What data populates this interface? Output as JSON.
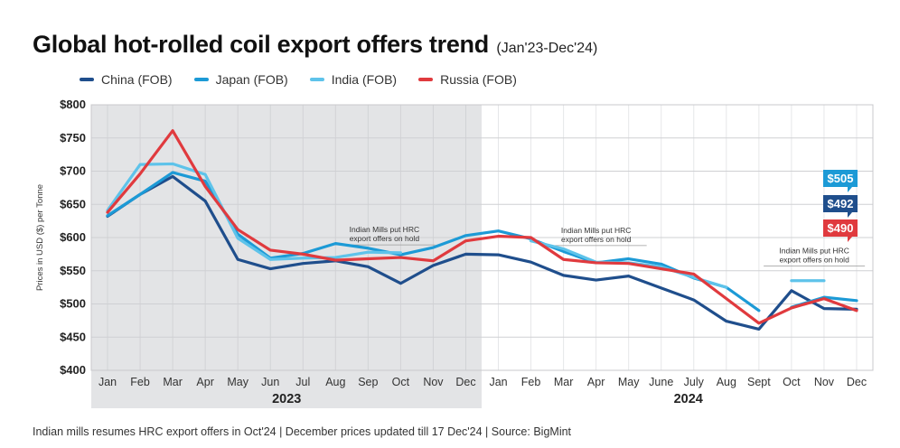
{
  "header": {
    "title": "Global hot-rolled coil export offers trend",
    "subtitle": "(Jan'23-Dec'24)"
  },
  "footer": {
    "note": "Indian mills resumes HRC export offers in Oct'24  |  December prices updated till 17 Dec'24 |  Source: BigMint"
  },
  "chart_data": {
    "type": "line",
    "title": "Global hot-rolled coil export offers trend",
    "subtitle": "(Jan'23-Dec'24)",
    "ylabel": "Prices in USD ($) per Tonne",
    "ylim": [
      400,
      800
    ],
    "yticks": [
      400,
      450,
      500,
      550,
      600,
      650,
      700,
      750,
      800
    ],
    "ytick_labels": [
      "$400",
      "$450",
      "$500",
      "$550",
      "$600",
      "$650",
      "$700",
      "$750",
      "$800"
    ],
    "grid": true,
    "legend_position": "top-left",
    "categories": [
      "Jan",
      "Feb",
      "Mar",
      "Apr",
      "May",
      "Jun",
      "Jul",
      "Aug",
      "Sep",
      "Oct",
      "Nov",
      "Dec",
      "Jan",
      "Feb",
      "Mar",
      "Apr",
      "May",
      "June",
      "July",
      "Aug",
      "Sept",
      "Oct",
      "Nov",
      "Dec"
    ],
    "year_groups": [
      {
        "label": "2023",
        "start": 0,
        "end": 11,
        "shaded": true
      },
      {
        "label": "2024",
        "start": 12,
        "end": 23,
        "shaded": false
      }
    ],
    "series": [
      {
        "name": "China (FOB)",
        "color": "#1f4e8c",
        "values": [
          632,
          665,
          692,
          655,
          567,
          553,
          561,
          565,
          556,
          531,
          558,
          575,
          574,
          563,
          543,
          536,
          542,
          524,
          506,
          474,
          462,
          520,
          493,
          492
        ]
      },
      {
        "name": "Japan (FOB)",
        "color": "#1c9ad6",
        "values": [
          633,
          665,
          698,
          685,
          605,
          569,
          576,
          591,
          584,
          574,
          585,
          603,
          610,
          598,
          579,
          562,
          568,
          560,
          539,
          525,
          490,
          495,
          510,
          505
        ],
        "gaps_after": [
          20
        ]
      },
      {
        "name": "India (FOB)",
        "color": "#5ec3ea",
        "values": [
          641,
          710,
          711,
          695,
          599,
          567,
          569,
          570,
          578,
          577,
          null,
          null,
          null,
          595,
          583,
          563,
          562,
          556,
          540,
          525,
          null,
          535,
          535,
          null
        ]
      },
      {
        "name": "Russia (FOB)",
        "color": "#e03a3e",
        "values": [
          638,
          696,
          761,
          677,
          612,
          581,
          575,
          566,
          568,
          570,
          565,
          595,
          602,
          600,
          567,
          562,
          561,
          553,
          545,
          508,
          471,
          494,
          508,
          490
        ]
      }
    ],
    "annotations": [
      {
        "text_lines": [
          "Indian Mills put HRC",
          "export offers on hold"
        ],
        "at_index": 8.5,
        "y": 608
      },
      {
        "text_lines": [
          "Indian Mills put HRC",
          "export offers on hold"
        ],
        "at_index": 15.0,
        "y": 607
      },
      {
        "text_lines": [
          "Indian Mills put HRC",
          "export offers on hold"
        ],
        "at_index": 21.7,
        "y": 576
      }
    ],
    "end_labels": [
      {
        "text": "$505",
        "color": "#1c9ad6"
      },
      {
        "text": "$492",
        "color": "#1f4e8c"
      },
      {
        "text": "$490",
        "color": "#e03a3e"
      }
    ]
  }
}
